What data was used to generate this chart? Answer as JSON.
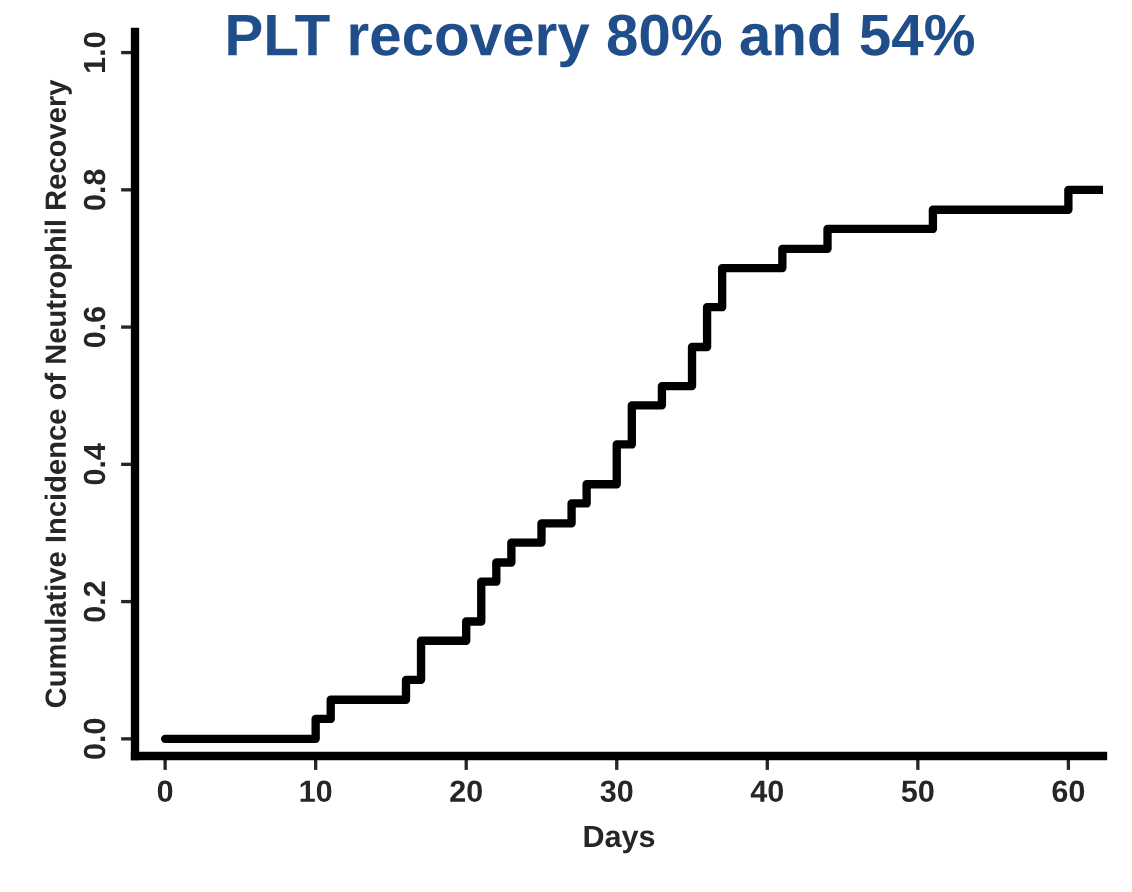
{
  "chart_data": {
    "type": "step",
    "title": "PLT recovery 80% and 54%",
    "xlabel": "Days",
    "ylabel": "Cumulative Incidence of Neutrophil Recovery",
    "x": [
      0,
      10,
      11,
      16,
      17,
      20,
      21,
      22,
      23,
      25,
      27,
      28,
      30,
      31,
      33,
      35,
      36,
      37,
      41,
      44,
      51,
      60,
      62.3
    ],
    "series": [
      {
        "color": "#000000",
        "values": [
          0,
          0.029,
          0.057,
          0.086,
          0.143,
          0.171,
          0.229,
          0.257,
          0.286,
          0.314,
          0.343,
          0.371,
          0.429,
          0.486,
          0.514,
          0.571,
          0.629,
          0.686,
          0.714,
          0.743,
          0.771,
          0.8,
          0.8
        ]
      }
    ],
    "xlim": [
      -2,
      62.3
    ],
    "ylim": [
      -0.025,
      1.03
    ],
    "xticks": [
      0,
      10,
      20,
      30,
      40,
      50,
      60
    ],
    "yticks": [
      {
        "value": 0,
        "label": "0.0"
      },
      {
        "value": 0.2,
        "label": "0.2"
      },
      {
        "value": 0.4,
        "label": "0.4"
      },
      {
        "value": 0.6,
        "label": "0.6"
      },
      {
        "value": 0.8,
        "label": "0.8"
      },
      {
        "value": 1,
        "label": "1.0"
      }
    ],
    "grid": false,
    "legend": false,
    "line_style": "solid",
    "marker": "none"
  }
}
